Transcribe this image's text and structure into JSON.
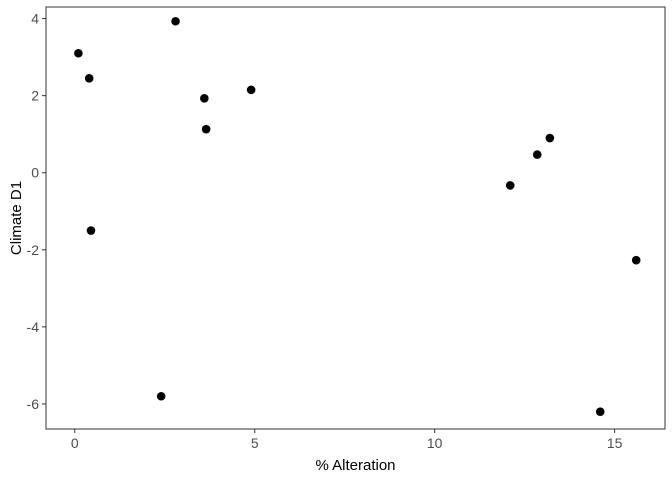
{
  "chart_data": {
    "type": "scatter",
    "title": "",
    "xlabel": "% Alteration",
    "ylabel": "Climate D1",
    "xlim": [
      -0.8,
      16.4
    ],
    "ylim": [
      -6.65,
      4.3
    ],
    "x_ticks": [
      0,
      5,
      10,
      15
    ],
    "y_ticks": [
      -6,
      -4,
      -2,
      0,
      2,
      4
    ],
    "grid": false,
    "legend": "none",
    "point_color": "#000000",
    "axis_color": "#333333",
    "points": [
      {
        "x": 0.1,
        "y": 3.1
      },
      {
        "x": 0.4,
        "y": 2.45
      },
      {
        "x": 0.45,
        "y": -1.5
      },
      {
        "x": 2.4,
        "y": -5.8
      },
      {
        "x": 2.8,
        "y": 3.93
      },
      {
        "x": 3.6,
        "y": 1.93
      },
      {
        "x": 3.65,
        "y": 1.13
      },
      {
        "x": 4.9,
        "y": 2.15
      },
      {
        "x": 12.1,
        "y": -0.33
      },
      {
        "x": 12.85,
        "y": 0.47
      },
      {
        "x": 13.2,
        "y": 0.9
      },
      {
        "x": 14.6,
        "y": -6.2
      },
      {
        "x": 15.6,
        "y": -2.27
      }
    ]
  }
}
